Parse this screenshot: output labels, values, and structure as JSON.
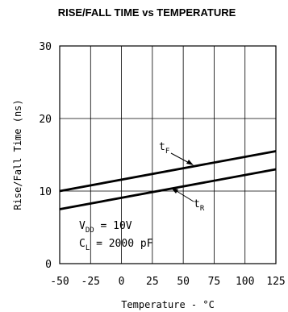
{
  "chart_data": {
    "type": "line",
    "title": "RISE/FALL TIME vs TEMPERATURE",
    "xlabel": "Temperature - °C",
    "ylabel": "Rise/Fall Time (ns)",
    "xlim": [
      -50,
      125
    ],
    "ylim": [
      0,
      30
    ],
    "xticks": [
      -50,
      -25,
      0,
      25,
      50,
      75,
      100,
      125
    ],
    "yticks": [
      0,
      10,
      20,
      30
    ],
    "grid": true,
    "series": [
      {
        "name": "tF",
        "label_main": "t",
        "label_sub": "F",
        "x": [
          -50,
          125
        ],
        "y": [
          10,
          15.5
        ]
      },
      {
        "name": "tR",
        "label_main": "t",
        "label_sub": "R",
        "x": [
          -50,
          125
        ],
        "y": [
          7.5,
          13
        ]
      }
    ],
    "annotations": {
      "vdd_main": "V",
      "vdd_sub": "DD",
      "vdd_value": " = 10V",
      "cl_main": "C",
      "cl_sub": "L",
      "cl_value": " = 2000 pF"
    }
  }
}
